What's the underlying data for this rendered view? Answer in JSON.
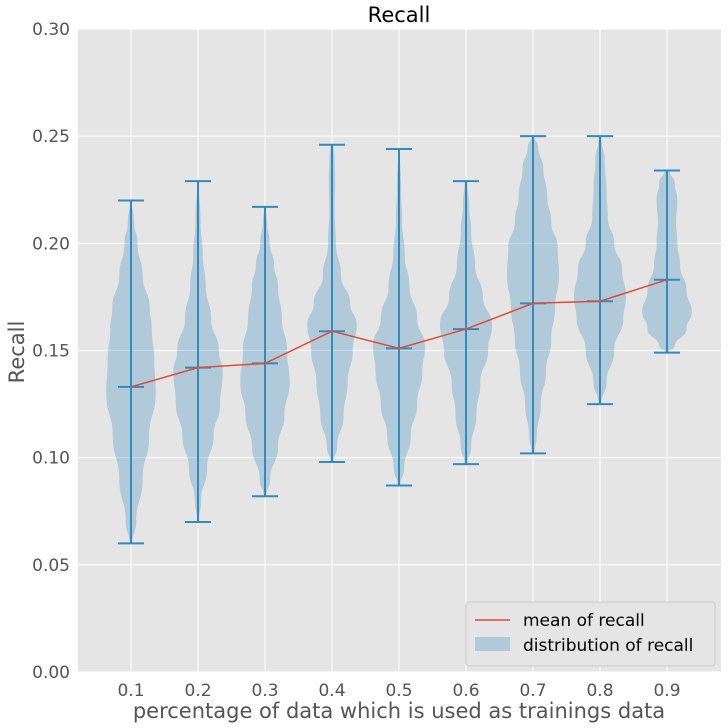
{
  "chart_data": {
    "type": "violin",
    "title": "Recall",
    "xlabel": "percentage of data which is used as trainings data",
    "ylabel": "Recall",
    "categories": [
      "0.1",
      "0.2",
      "0.3",
      "0.4",
      "0.5",
      "0.6",
      "0.7",
      "0.8",
      "0.9"
    ],
    "ylim": [
      0,
      0.3
    ],
    "yticks": [
      "0.00",
      "0.05",
      "0.10",
      "0.15",
      "0.20",
      "0.25",
      "0.30"
    ],
    "grid": true,
    "legend_position": "lower-right",
    "series": [
      {
        "name": "mean of recall",
        "kind": "line",
        "color": "#e24a33",
        "values": [
          0.133,
          0.142,
          0.144,
          0.159,
          0.151,
          0.16,
          0.172,
          0.173,
          0.183
        ]
      },
      {
        "name": "distribution of recall",
        "kind": "violin",
        "color": "#348abd",
        "min": [
          0.06,
          0.07,
          0.082,
          0.098,
          0.087,
          0.097,
          0.102,
          0.125,
          0.149
        ],
        "max": [
          0.22,
          0.229,
          0.217,
          0.246,
          0.244,
          0.229,
          0.25,
          0.25,
          0.234
        ],
        "mean": [
          0.133,
          0.142,
          0.144,
          0.159,
          0.151,
          0.16,
          0.172,
          0.173,
          0.183
        ]
      }
    ],
    "density_profiles": [
      [
        [
          0.06,
          0.05
        ],
        [
          0.07,
          0.2
        ],
        [
          0.09,
          0.45
        ],
        [
          0.11,
          0.7
        ],
        [
          0.13,
          0.95
        ],
        [
          0.145,
          0.9
        ],
        [
          0.16,
          0.8
        ],
        [
          0.17,
          0.72
        ],
        [
          0.185,
          0.45
        ],
        [
          0.2,
          0.25
        ],
        [
          0.21,
          0.12
        ],
        [
          0.22,
          0.03
        ]
      ],
      [
        [
          0.07,
          0.03
        ],
        [
          0.08,
          0.12
        ],
        [
          0.095,
          0.35
        ],
        [
          0.11,
          0.6
        ],
        [
          0.125,
          0.85
        ],
        [
          0.14,
          0.95
        ],
        [
          0.15,
          0.8
        ],
        [
          0.165,
          0.5
        ],
        [
          0.18,
          0.3
        ],
        [
          0.195,
          0.18
        ],
        [
          0.21,
          0.1
        ],
        [
          0.229,
          0.03
        ]
      ],
      [
        [
          0.082,
          0.05
        ],
        [
          0.09,
          0.2
        ],
        [
          0.105,
          0.5
        ],
        [
          0.12,
          0.75
        ],
        [
          0.135,
          0.95
        ],
        [
          0.15,
          0.85
        ],
        [
          0.165,
          0.65
        ],
        [
          0.18,
          0.5
        ],
        [
          0.19,
          0.35
        ],
        [
          0.2,
          0.18
        ],
        [
          0.21,
          0.08
        ],
        [
          0.217,
          0.03
        ]
      ],
      [
        [
          0.098,
          0.05
        ],
        [
          0.105,
          0.2
        ],
        [
          0.12,
          0.45
        ],
        [
          0.135,
          0.6
        ],
        [
          0.15,
          0.8
        ],
        [
          0.162,
          0.95
        ],
        [
          0.172,
          0.7
        ],
        [
          0.185,
          0.35
        ],
        [
          0.2,
          0.15
        ],
        [
          0.215,
          0.1
        ],
        [
          0.23,
          0.12
        ],
        [
          0.24,
          0.1
        ],
        [
          0.246,
          0.05
        ]
      ],
      [
        [
          0.087,
          0.05
        ],
        [
          0.095,
          0.2
        ],
        [
          0.11,
          0.45
        ],
        [
          0.125,
          0.7
        ],
        [
          0.14,
          0.9
        ],
        [
          0.152,
          1.0
        ],
        [
          0.165,
          0.7
        ],
        [
          0.18,
          0.4
        ],
        [
          0.195,
          0.22
        ],
        [
          0.21,
          0.12
        ],
        [
          0.225,
          0.08
        ],
        [
          0.244,
          0.03
        ]
      ],
      [
        [
          0.097,
          0.05
        ],
        [
          0.105,
          0.2
        ],
        [
          0.12,
          0.4
        ],
        [
          0.135,
          0.55
        ],
        [
          0.15,
          0.85
        ],
        [
          0.162,
          1.0
        ],
        [
          0.175,
          0.65
        ],
        [
          0.19,
          0.35
        ],
        [
          0.205,
          0.2
        ],
        [
          0.218,
          0.12
        ],
        [
          0.229,
          0.05
        ]
      ],
      [
        [
          0.102,
          0.05
        ],
        [
          0.11,
          0.15
        ],
        [
          0.125,
          0.3
        ],
        [
          0.14,
          0.5
        ],
        [
          0.155,
          0.7
        ],
        [
          0.17,
          0.85
        ],
        [
          0.185,
          1.0
        ],
        [
          0.198,
          0.95
        ],
        [
          0.21,
          0.7
        ],
        [
          0.222,
          0.55
        ],
        [
          0.235,
          0.4
        ],
        [
          0.245,
          0.2
        ],
        [
          0.25,
          0.05
        ]
      ],
      [
        [
          0.125,
          0.05
        ],
        [
          0.135,
          0.25
        ],
        [
          0.15,
          0.55
        ],
        [
          0.165,
          0.9
        ],
        [
          0.175,
          1.0
        ],
        [
          0.188,
          0.85
        ],
        [
          0.2,
          0.55
        ],
        [
          0.212,
          0.3
        ],
        [
          0.225,
          0.25
        ],
        [
          0.238,
          0.18
        ],
        [
          0.25,
          0.05
        ]
      ],
      [
        [
          0.149,
          0.05
        ],
        [
          0.152,
          0.3
        ],
        [
          0.16,
          0.75
        ],
        [
          0.168,
          0.95
        ],
        [
          0.178,
          0.75
        ],
        [
          0.19,
          0.5
        ],
        [
          0.2,
          0.4
        ],
        [
          0.21,
          0.35
        ],
        [
          0.22,
          0.4
        ],
        [
          0.228,
          0.3
        ],
        [
          0.234,
          0.1
        ]
      ]
    ],
    "density_max_halfwidth_px": 26
  }
}
